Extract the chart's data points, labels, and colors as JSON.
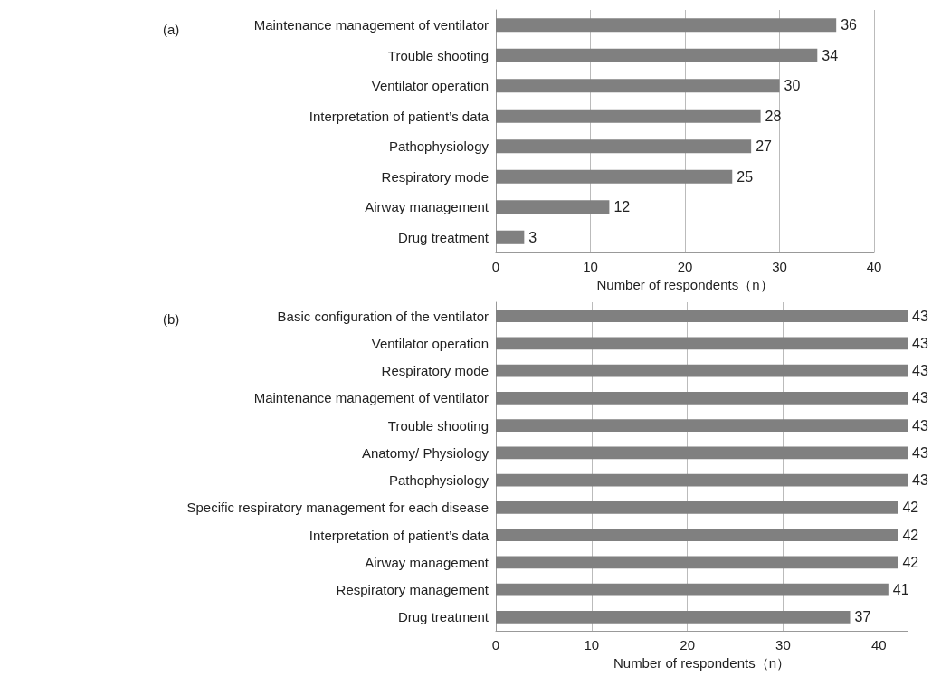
{
  "chart_data": [
    {
      "type": "bar",
      "orientation": "horizontal",
      "title": "(a)",
      "xlabel": "Number of respondents（n）",
      "categories": [
        "Maintenance management of ventilator",
        "Trouble shooting",
        "Ventilator operation",
        "Interpretation of patient’s data",
        "Pathophysiology",
        "Respiratory mode",
        "Airway management",
        "Drug treatment"
      ],
      "values": [
        36,
        34,
        30,
        28,
        27,
        25,
        12,
        3
      ],
      "color": "#808080",
      "xlim": [
        0,
        40
      ],
      "xticks": [
        0,
        10,
        20,
        30,
        40
      ],
      "grid": "x",
      "data_labels": true
    },
    {
      "type": "bar",
      "orientation": "horizontal",
      "title": "(b)",
      "xlabel": "Number of respondents（n）",
      "categories": [
        "Basic configuration of the ventilator",
        "Ventilator operation",
        "Respiratory mode",
        "Maintenance management of ventilator",
        "Trouble shooting",
        "Anatomy/ Physiology",
        "Pathophysiology",
        "Specific respiratory management for each disease",
        "Interpretation of patient’s data",
        "Airway management",
        "Respiratory management",
        "Drug treatment"
      ],
      "values": [
        43,
        43,
        43,
        43,
        43,
        43,
        43,
        42,
        42,
        42,
        41,
        37
      ],
      "color": "#808080",
      "xlim": [
        0,
        43
      ],
      "xticks": [
        0,
        10,
        20,
        30,
        40
      ],
      "grid": "x",
      "data_labels": true
    }
  ]
}
